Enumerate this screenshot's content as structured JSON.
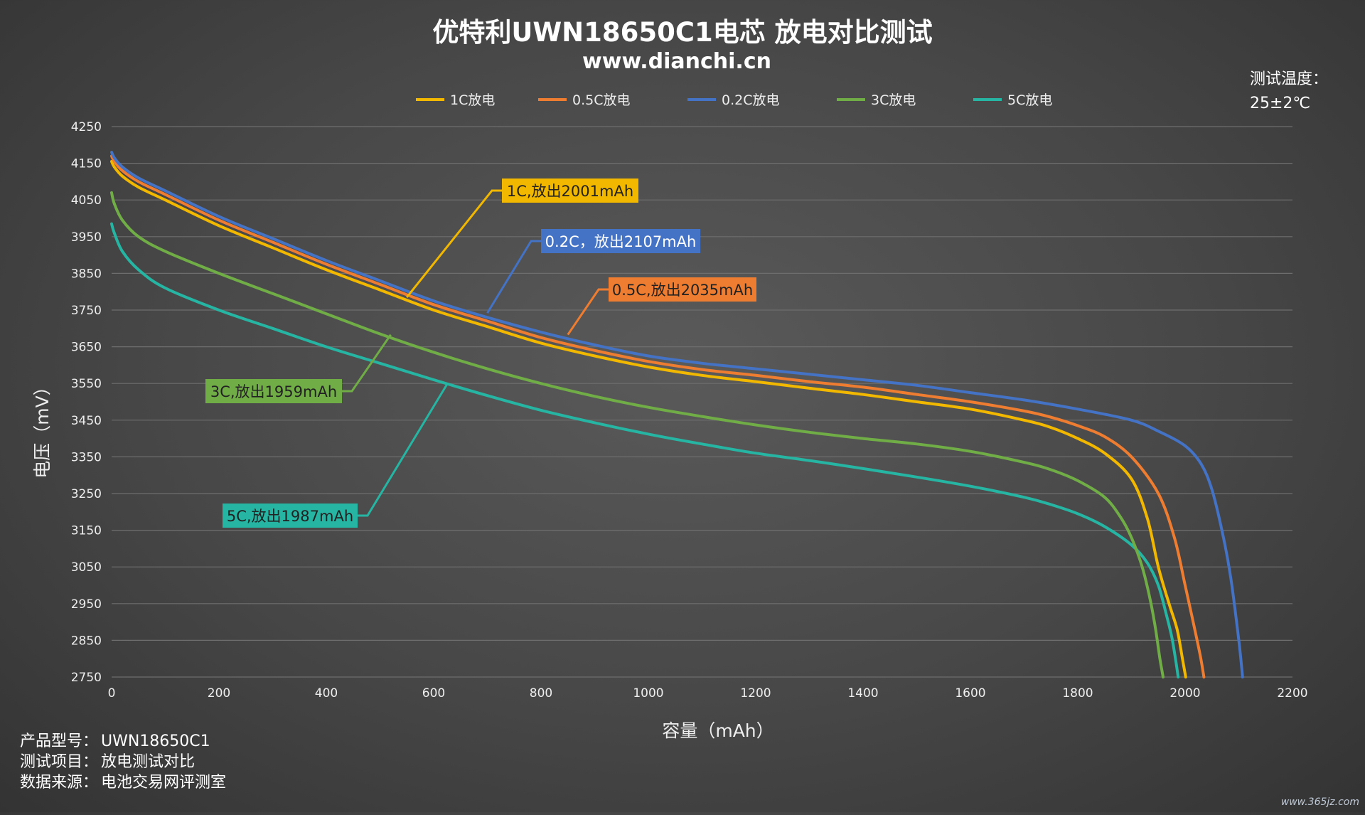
{
  "chart_data": {
    "type": "line",
    "title": "优特利UWN18650C1电芯 放电对比测试",
    "subtitle": "www.dianchi.cn",
    "xlabel": "容量（mAh）",
    "ylabel": "电压（mV）",
    "xlim": [
      0,
      2200
    ],
    "ylim": [
      2750,
      4250
    ],
    "xticks": [
      0,
      200,
      400,
      600,
      800,
      1000,
      1200,
      1400,
      1600,
      1800,
      2000,
      2200
    ],
    "yticks": [
      2750,
      2850,
      2950,
      3050,
      3150,
      3250,
      3350,
      3450,
      3550,
      3650,
      3750,
      3850,
      3950,
      4050,
      4150,
      4250
    ],
    "grid": "horizontal",
    "legend_position": "top",
    "series": [
      {
        "name": "1C放电",
        "color": "#f2b800",
        "x": [
          0,
          5,
          20,
          50,
          100,
          200,
          300,
          400,
          500,
          600,
          700,
          800,
          900,
          1000,
          1100,
          1200,
          1300,
          1400,
          1500,
          1600,
          1700,
          1750,
          1800,
          1850,
          1900,
          1930,
          1950,
          1970,
          1985,
          1995,
          2001
        ],
        "y": [
          4155,
          4140,
          4115,
          4085,
          4050,
          3980,
          3920,
          3860,
          3805,
          3750,
          3705,
          3660,
          3625,
          3595,
          3572,
          3555,
          3537,
          3520,
          3500,
          3480,
          3450,
          3430,
          3400,
          3360,
          3290,
          3180,
          3050,
          2950,
          2880,
          2800,
          2750
        ]
      },
      {
        "name": "0.5C放电",
        "color": "#ee7d31",
        "x": [
          0,
          5,
          20,
          50,
          100,
          200,
          300,
          400,
          500,
          600,
          700,
          800,
          900,
          1000,
          1100,
          1200,
          1300,
          1400,
          1500,
          1600,
          1700,
          1750,
          1800,
          1850,
          1900,
          1950,
          1980,
          2000,
          2015,
          2028,
          2035
        ],
        "y": [
          4170,
          4155,
          4130,
          4100,
          4065,
          3995,
          3935,
          3875,
          3820,
          3765,
          3720,
          3675,
          3640,
          3610,
          3588,
          3572,
          3555,
          3540,
          3520,
          3500,
          3475,
          3458,
          3435,
          3405,
          3350,
          3250,
          3130,
          3000,
          2900,
          2810,
          2750
        ]
      },
      {
        "name": "0.2C放电",
        "color": "#4472c4",
        "x": [
          0,
          5,
          20,
          50,
          100,
          200,
          300,
          400,
          500,
          600,
          700,
          800,
          900,
          1000,
          1100,
          1200,
          1300,
          1400,
          1500,
          1600,
          1700,
          1800,
          1900,
          1950,
          2000,
          2030,
          2050,
          2070,
          2085,
          2100,
          2107
        ],
        "y": [
          4180,
          4165,
          4140,
          4110,
          4075,
          4005,
          3945,
          3885,
          3830,
          3775,
          3730,
          3690,
          3655,
          3625,
          3605,
          3590,
          3575,
          3560,
          3545,
          3525,
          3505,
          3480,
          3450,
          3420,
          3380,
          3330,
          3260,
          3140,
          3020,
          2850,
          2750
        ]
      },
      {
        "name": "3C放电",
        "color": "#70ad47",
        "x": [
          0,
          5,
          20,
          50,
          100,
          200,
          300,
          400,
          500,
          600,
          700,
          800,
          900,
          1000,
          1100,
          1200,
          1300,
          1400,
          1500,
          1600,
          1700,
          1750,
          1800,
          1850,
          1880,
          1900,
          1920,
          1935,
          1945,
          1953,
          1959
        ],
        "y": [
          4070,
          4040,
          3995,
          3950,
          3910,
          3850,
          3795,
          3740,
          3685,
          3635,
          3590,
          3550,
          3515,
          3485,
          3460,
          3437,
          3417,
          3400,
          3385,
          3365,
          3335,
          3315,
          3285,
          3240,
          3185,
          3130,
          3050,
          2960,
          2880,
          2800,
          2750
        ]
      },
      {
        "name": "5C放电",
        "color": "#26b5a3",
        "x": [
          0,
          5,
          20,
          50,
          100,
          200,
          300,
          400,
          500,
          600,
          700,
          800,
          900,
          1000,
          1100,
          1200,
          1300,
          1400,
          1500,
          1600,
          1700,
          1750,
          1800,
          1850,
          1900,
          1930,
          1950,
          1965,
          1975,
          1982,
          1987
        ],
        "y": [
          3985,
          3960,
          3910,
          3860,
          3810,
          3750,
          3700,
          3650,
          3605,
          3560,
          3517,
          3477,
          3443,
          3412,
          3385,
          3360,
          3340,
          3318,
          3295,
          3270,
          3240,
          3220,
          3195,
          3160,
          3110,
          3060,
          3000,
          2920,
          2860,
          2800,
          2750
        ]
      }
    ],
    "annotations": [
      {
        "text": "1C,放出2001mAh",
        "bg": "#f2b800",
        "fg": "#222222",
        "line": "#f2b800",
        "point": [
          550,
          3785
        ]
      },
      {
        "text": "0.2C，放出2107mAh",
        "bg": "#4472c4",
        "fg": "#ffffff",
        "line": "#4472c4",
        "point": [
          700,
          3742
        ]
      },
      {
        "text": "0.5C,放出2035mAh",
        "bg": "#ee7d31",
        "fg": "#222222",
        "line": "#ee7d31",
        "point": [
          850,
          3683
        ]
      },
      {
        "text": "3C,放出1959mAh",
        "bg": "#70ad47",
        "fg": "#222222",
        "line": "#70ad47",
        "point": [
          520,
          3683
        ]
      },
      {
        "text": "5C,放出1987mAh",
        "bg": "#26b5a3",
        "fg": "#222222",
        "line": "#26b5a3",
        "point": [
          625,
          3548
        ]
      }
    ]
  },
  "temperature": {
    "label": "测试温度：",
    "value": "25±2℃"
  },
  "info": [
    {
      "label": "产品型号：",
      "value": "UWN18650C1"
    },
    {
      "label": "测试项目：",
      "value": "放电测试对比"
    },
    {
      "label": "数据来源：",
      "value": "电池交易网评测室"
    }
  ],
  "watermark": "www.365jz.com"
}
